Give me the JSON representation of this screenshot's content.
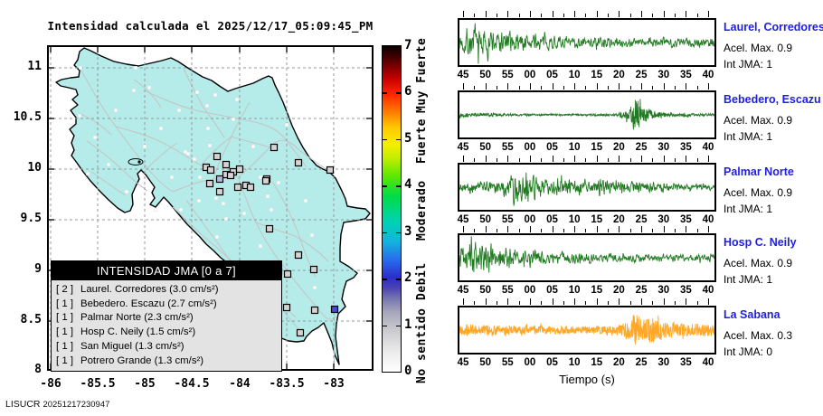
{
  "title": "Intensidad calculada el 2025/12/17_05:09:45_PM",
  "footer": {
    "label": "LISUCR",
    "timestamp": "20251217230947"
  },
  "map": {
    "land_color": "#b5ebe9",
    "x_tick_labels": [
      "-86",
      "-85.5",
      "-85",
      "-84.5",
      "-84",
      "-83.5",
      "-83"
    ],
    "y_tick_labels": [
      "11",
      "10.5",
      "10",
      "9.5",
      "9",
      "8.5",
      "8"
    ],
    "legend": {
      "title": "INTENSIDAD JMA [0 a 7]",
      "items": [
        {
          "badge": "[ 2 ]",
          "label": "Laurel. Corredores (3.0 cm/s²)"
        },
        {
          "badge": "[ 1 ]",
          "label": "Bebedero. Escazu (2.7 cm/s²)"
        },
        {
          "badge": "[ 1 ]",
          "label": "Palmar Norte (2.3 cm/s²)"
        },
        {
          "badge": "[ 1 ]",
          "label": "Hosp C. Neily (1.5 cm/s²)"
        },
        {
          "badge": "[ 1 ]",
          "label": "San Miguel (1.3 cm/s²)"
        },
        {
          "badge": "[ 1 ]",
          "label": "Potrero Grande (1.3 cm/s²)"
        }
      ]
    },
    "stations_triggered": [
      [
        240,
        173
      ],
      [
        250,
        182
      ],
      [
        228,
        185
      ],
      [
        233,
        188
      ],
      [
        258,
        190
      ],
      [
        265,
        187
      ],
      [
        250,
        193
      ],
      [
        255,
        194
      ],
      [
        243,
        198,
        "#b6bade"
      ],
      [
        232,
        203
      ],
      [
        272,
        205
      ],
      [
        277,
        207
      ],
      [
        263,
        207
      ],
      [
        243,
        212
      ],
      [
        295,
        198
      ],
      [
        303,
        163
      ],
      [
        330,
        180
      ],
      [
        365,
        188
      ],
      [
        294,
        200
      ],
      [
        298,
        253
      ],
      [
        330,
        282
      ],
      [
        347,
        298
      ],
      [
        308,
        300
      ],
      [
        318,
        303
      ],
      [
        317,
        340
      ],
      [
        348,
        343
      ],
      [
        332,
        368
      ],
      [
        370,
        342,
        "#4a4ad0"
      ]
    ],
    "stations_small": [
      [
        89,
        75
      ],
      [
        150,
        75
      ],
      [
        165,
        97
      ],
      [
        229,
        117
      ],
      [
        317,
        138
      ],
      [
        262,
        110
      ],
      [
        238,
        105
      ],
      [
        218,
        102
      ],
      [
        198,
        122
      ],
      [
        128,
        122
      ],
      [
        148,
        100
      ],
      [
        105,
        152
      ],
      [
        88,
        128
      ],
      [
        120,
        182
      ],
      [
        97,
        192
      ],
      [
        140,
        212
      ],
      [
        160,
        162
      ],
      [
        178,
        142
      ],
      [
        258,
        132
      ],
      [
        230,
        142
      ],
      [
        208,
        170
      ],
      [
        190,
        196
      ],
      [
        172,
        232
      ],
      [
        200,
        232
      ],
      [
        220,
        222
      ],
      [
        280,
        162
      ],
      [
        308,
        202
      ],
      [
        338,
        222
      ],
      [
        300,
        232
      ],
      [
        270,
        236
      ],
      [
        250,
        242
      ],
      [
        288,
        272
      ],
      [
        308,
        322
      ],
      [
        278,
        302
      ],
      [
        240,
        262
      ],
      [
        205,
        168
      ],
      [
        215,
        176
      ],
      [
        221,
        196
      ],
      [
        239,
        219
      ],
      [
        247,
        225
      ],
      [
        296,
        217
      ],
      [
        232,
        161
      ],
      [
        288,
        196
      ],
      [
        345,
        260
      ],
      [
        300,
        352
      ],
      [
        265,
        320
      ],
      [
        348,
        318
      ]
    ]
  },
  "colorbar": {
    "tick_labels": [
      "0",
      "1",
      "2",
      "3",
      "4",
      "5",
      "6",
      "7"
    ],
    "category_labels": [
      {
        "text": "Muy Fuerte",
        "y": 83
      },
      {
        "text": "Fuerte",
        "y": 156
      },
      {
        "text": "Moderado",
        "y": 233
      },
      {
        "text": "Debil",
        "y": 311
      },
      {
        "text": "No sentido",
        "y": 382
      }
    ],
    "gradient_stops": [
      "#ffffff 0%",
      "#ececec 6%",
      "#c9c9cd 13%",
      "#a8a8bc 18%",
      "#7d7cb0 22%",
      "#4840b4 26%",
      "#2a2ec8 29%",
      "#2968ec 34%",
      "#12b4dc 40%",
      "#00d2b4 46%",
      "#00dc46 54%",
      "#5ae800 60%",
      "#c8ee00 66%",
      "#f6ee00 70%",
      "#ffc800 75%",
      "#ff7800 80%",
      "#ff2800 85%",
      "#c80000 90%",
      "#780000 94%",
      "#3c0000 97%",
      "#0a0000 100%"
    ]
  },
  "seismograms": {
    "xlabel": "Tiempo (s)",
    "x_tick_labels": [
      "45",
      "50",
      "55",
      "00",
      "05",
      "10",
      "15",
      "20",
      "25",
      "30",
      "35",
      "40"
    ],
    "panels": [
      {
        "station": "Laurel, Corredores",
        "accel": "Acel. Max. 0.9",
        "jma": "Int JMA: 1",
        "color": "#217a21",
        "seed": 7,
        "n": 620,
        "mix": 0.6,
        "envelope": [
          [
            0,
            0.5
          ],
          [
            2,
            0.95
          ],
          [
            6,
            0.85
          ],
          [
            12,
            0.55
          ],
          [
            20,
            0.42
          ],
          [
            30,
            0.3
          ],
          [
            45,
            0.27
          ],
          [
            60,
            0.3
          ]
        ]
      },
      {
        "station": "Bebedero, Escazu",
        "accel": "Acel. Max. 0.9",
        "jma": "Int JMA: 1",
        "color": "#217a21",
        "seed": 13,
        "n": 900,
        "mix": 0.8,
        "envelope": [
          [
            0,
            0.12
          ],
          [
            6,
            0.09
          ],
          [
            15,
            0.06
          ],
          [
            30,
            0.05
          ],
          [
            37,
            0.07
          ],
          [
            40,
            0.3
          ],
          [
            41.5,
            1.0
          ],
          [
            43,
            0.45
          ],
          [
            46,
            0.18
          ],
          [
            50,
            0.1
          ],
          [
            60,
            0.07
          ]
        ]
      },
      {
        "station": "Palmar Norte",
        "accel": "Acel. Max. 0.9",
        "jma": "Int JMA: 1",
        "color": "#217a21",
        "seed": 21,
        "n": 680,
        "mix": 0.62,
        "envelope": [
          [
            0,
            0.28
          ],
          [
            6,
            0.32
          ],
          [
            11,
            0.5
          ],
          [
            13,
            1.0
          ],
          [
            16,
            0.85
          ],
          [
            20,
            0.5
          ],
          [
            28,
            0.45
          ],
          [
            38,
            0.35
          ],
          [
            48,
            0.25
          ],
          [
            60,
            0.18
          ]
        ]
      },
      {
        "station": "Hosp C. Neily",
        "accel": "Acel. Max. 0.9",
        "jma": "Int JMA: 1",
        "color": "#217a21",
        "seed": 5,
        "n": 620,
        "mix": 0.58,
        "envelope": [
          [
            0,
            0.55
          ],
          [
            2,
            1.0
          ],
          [
            7,
            0.8
          ],
          [
            13,
            0.6
          ],
          [
            20,
            0.4
          ],
          [
            30,
            0.28
          ],
          [
            40,
            0.22
          ],
          [
            50,
            0.25
          ],
          [
            60,
            0.22
          ]
        ]
      },
      {
        "station": "La Sabana",
        "accel": "Acel. Max. 0.3",
        "jma": "Int JMA: 0",
        "color": "#ffa726",
        "seed": 42,
        "n": 980,
        "mix": 0.85,
        "envelope": [
          [
            0,
            0.3
          ],
          [
            8,
            0.27
          ],
          [
            18,
            0.22
          ],
          [
            28,
            0.2
          ],
          [
            36,
            0.25
          ],
          [
            40,
            0.5
          ],
          [
            41.5,
            1.0
          ],
          [
            43,
            0.55
          ],
          [
            45,
            0.8
          ],
          [
            47,
            0.55
          ],
          [
            50,
            0.4
          ],
          [
            55,
            0.33
          ],
          [
            60,
            0.28
          ]
        ]
      }
    ]
  },
  "chart_data": {
    "type": "composite",
    "charts": [
      {
        "type": "map",
        "title": "Intensidad calculada el 2025/12/17_05:09:45_PM",
        "region": "Costa Rica",
        "x_ticks": [
          -86,
          -85.5,
          -85,
          -84.5,
          -84,
          -83.5,
          -83
        ],
        "y_ticks": [
          8,
          8.5,
          9,
          9.5,
          10,
          10.5,
          11
        ],
        "colorbar_range": [
          0,
          7
        ],
        "colorbar_categories": [
          "No sentido",
          "Debil",
          "Moderado",
          "Fuerte",
          "Muy Fuerte"
        ],
        "stations": [
          {
            "name": "Laurel. Corredores",
            "jma_intensity": 2,
            "accel_cm_s2": 3.0
          },
          {
            "name": "Bebedero. Escazu",
            "jma_intensity": 1,
            "accel_cm_s2": 2.7
          },
          {
            "name": "Palmar Norte",
            "jma_intensity": 1,
            "accel_cm_s2": 2.3
          },
          {
            "name": "Hosp C. Neily",
            "jma_intensity": 1,
            "accel_cm_s2": 1.5
          },
          {
            "name": "San Miguel",
            "jma_intensity": 1,
            "accel_cm_s2": 1.3
          },
          {
            "name": "Potrero Grande",
            "jma_intensity": 1,
            "accel_cm_s2": 1.3
          }
        ]
      },
      {
        "type": "seismogram_set",
        "xlabel": "Tiempo (s)",
        "x_tick_labels": [
          "45",
          "50",
          "55",
          "00",
          "05",
          "10",
          "15",
          "20",
          "25",
          "30",
          "35",
          "40"
        ],
        "panels": [
          {
            "station": "Laurel, Corredores",
            "acel_max": 0.9,
            "int_jma": 1
          },
          {
            "station": "Bebedero, Escazu",
            "acel_max": 0.9,
            "int_jma": 1
          },
          {
            "station": "Palmar Norte",
            "acel_max": 0.9,
            "int_jma": 1
          },
          {
            "station": "Hosp C. Neily",
            "acel_max": 0.9,
            "int_jma": 1
          },
          {
            "station": "La Sabana",
            "acel_max": 0.3,
            "int_jma": 0
          }
        ]
      }
    ]
  }
}
